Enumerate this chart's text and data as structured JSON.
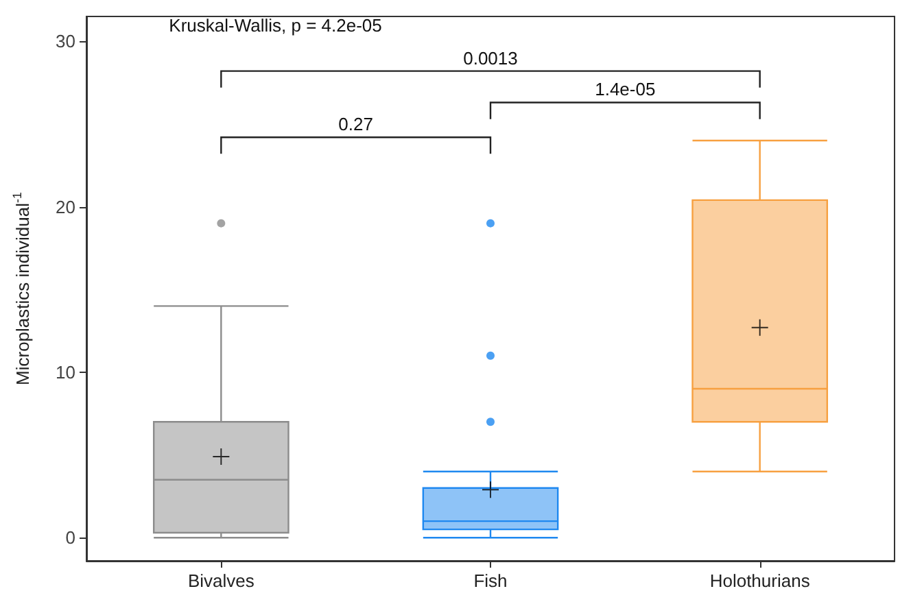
{
  "chart_data": {
    "type": "box",
    "ylabel": "Microplastics individual$^{-1}$",
    "categories": [
      "Bivalves",
      "Fish",
      "Holothurians"
    ],
    "colors": [
      "#8c8c8c",
      "#1e88f0",
      "#f7a040"
    ],
    "boxes": [
      {
        "low": 0,
        "q1": 0.3,
        "median": 3.5,
        "q3": 7,
        "high": 14,
        "mean": 4.9,
        "outliers": [
          19
        ]
      },
      {
        "low": 0,
        "q1": 0.5,
        "median": 1,
        "q3": 3,
        "high": 4,
        "mean": 2.9,
        "outliers": [
          7,
          11,
          19
        ]
      },
      {
        "low": 4,
        "q1": 7,
        "median": 9,
        "q3": 20.4,
        "high": 24,
        "mean": 12.7
      }
    ],
    "ylim": [
      -1.4,
      31.5
    ],
    "yticks": [
      0,
      10,
      20,
      30
    ],
    "annotations": [
      "Kruskal-Wallis, p = 4.2e-05",
      "0.0013",
      "1.4e-05",
      "0.27"
    ]
  }
}
